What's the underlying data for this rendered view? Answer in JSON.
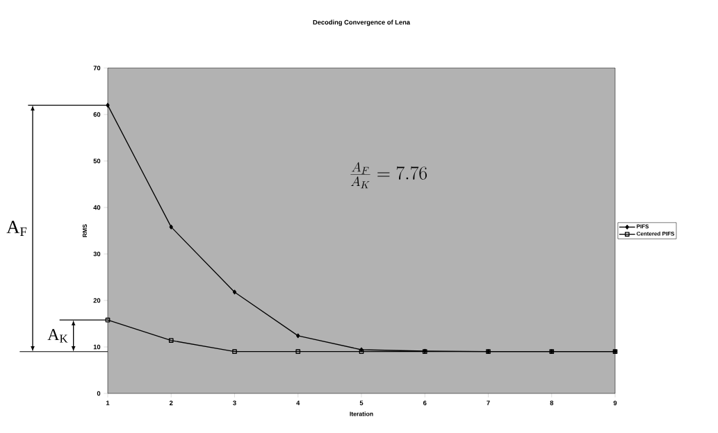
{
  "chart_data": {
    "type": "line",
    "title": "Decoding Convergence of Lena",
    "xlabel": "Iteration",
    "ylabel": "RMS",
    "x": [
      1,
      2,
      3,
      4,
      5,
      6,
      7,
      8,
      9
    ],
    "series": [
      {
        "name": "PIFS",
        "color": "#000000",
        "marker": "diamond",
        "values": [
          62,
          35.8,
          21.8,
          12.4,
          9.4,
          9.1,
          9.0,
          9.0,
          9.0
        ]
      },
      {
        "name": "Centered PIFS",
        "color": "#000000",
        "marker": "square",
        "values": [
          15.8,
          11.4,
          9.0,
          9.0,
          9.0,
          9.0,
          9.0,
          9.0,
          9.0
        ]
      }
    ],
    "xlim": [
      1,
      9
    ],
    "ylim": [
      0,
      70
    ],
    "xticks": [
      1,
      2,
      3,
      4,
      5,
      6,
      7,
      8,
      9
    ],
    "yticks": [
      0,
      10,
      20,
      30,
      40,
      50,
      60,
      70
    ],
    "grid": false,
    "legend": "right",
    "line_style": "solid",
    "annotations": [
      "A$_{F}$",
      "A$_{K}$",
      "\\frac{A_F}{A_K}= 7.76"
    ]
  }
}
